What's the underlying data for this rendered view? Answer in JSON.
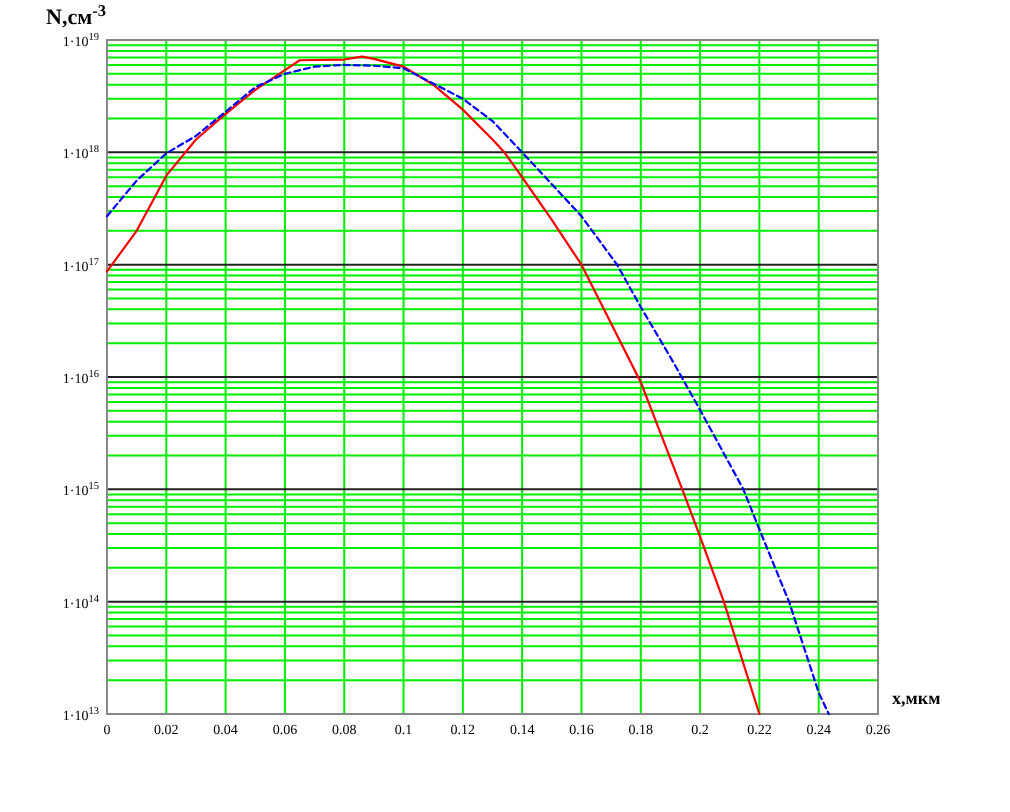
{
  "chart_data": {
    "type": "line",
    "xlabel": "x,мкм",
    "ylabel": "N,см$^{-3}$",
    "log": "y",
    "grid": true,
    "xlim": [
      0,
      0.26
    ],
    "xticks": [
      0,
      0.02,
      0.04,
      0.06,
      0.08,
      0.1,
      0.12,
      0.14,
      0.16,
      0.18,
      0.2,
      0.22,
      0.24,
      0.26
    ],
    "ylim": [
      10000000000000.0,
      1e+19
    ],
    "yticks": [
      {
        "value": 10000000000000.0,
        "label": "1·10$^{13}$"
      },
      {
        "value": 100000000000000.0,
        "label": "1·10$^{14}$"
      },
      {
        "value": 1000000000000000.0,
        "label": "1·10$^{15}$"
      },
      {
        "value": 1e+16,
        "label": "1·10$^{16}$"
      },
      {
        "value": 1e+17,
        "label": "1·10$^{17}$"
      },
      {
        "value": 1e+18,
        "label": "1·10$^{18}$"
      },
      {
        "value": 1e+19,
        "label": "1·10$^{19}$"
      }
    ],
    "series": [
      {
        "color": "#ff0000",
        "line_style": "solid",
        "x": [
          0,
          0.01,
          0.02,
          0.03,
          0.04,
          0.05,
          0.06,
          0.065,
          0.08,
          0.086,
          0.09,
          0.1,
          0.11,
          0.12,
          0.13,
          0.134,
          0.14,
          0.15,
          0.16,
          0.17,
          0.18,
          0.194,
          0.2,
          0.208,
          0.22
        ],
        "values": [
          8.7e+16,
          2e+17,
          6.2e+17,
          1.3e+18,
          2.2e+18,
          3.6e+18,
          5.4e+18,
          6.6e+18,
          6.7e+18,
          7.1e+18,
          6.8e+18,
          5.8e+18,
          4e+18,
          2.4e+18,
          1.3e+18,
          1e+18,
          6e+17,
          2.5e+17,
          1e+17,
          3e+16,
          9000000000000000.0,
          1000000000000000.0,
          380000000000000.0,
          100000000000000.0,
          10000000000000.0
        ]
      },
      {
        "color": "#0000ff",
        "line_style": "dashed",
        "x": [
          0,
          0.01,
          0.02,
          0.03,
          0.04,
          0.05,
          0.06,
          0.07,
          0.08,
          0.09,
          0.1,
          0.11,
          0.12,
          0.13,
          0.14,
          0.15,
          0.16,
          0.172,
          0.18,
          0.19,
          0.2,
          0.2146,
          0.22,
          0.23,
          0.24,
          0.2434
        ],
        "values": [
          2.7e+17,
          5.6e+17,
          9.8e+17,
          1.4e+18,
          2.3e+18,
          3.8e+18,
          5e+18,
          5.8e+18,
          6e+18,
          5.9e+18,
          5.6e+18,
          4.1e+18,
          3e+18,
          1.9e+18,
          1e+18,
          5.2e+17,
          2.7e+17,
          1e+17,
          4.2e+16,
          1.5e+16,
          5100000000000000.0,
          1000000000000000.0,
          440000000000000.0,
          100000000000000.0,
          15500000000000.0,
          10000000000000.0
        ]
      }
    ]
  }
}
